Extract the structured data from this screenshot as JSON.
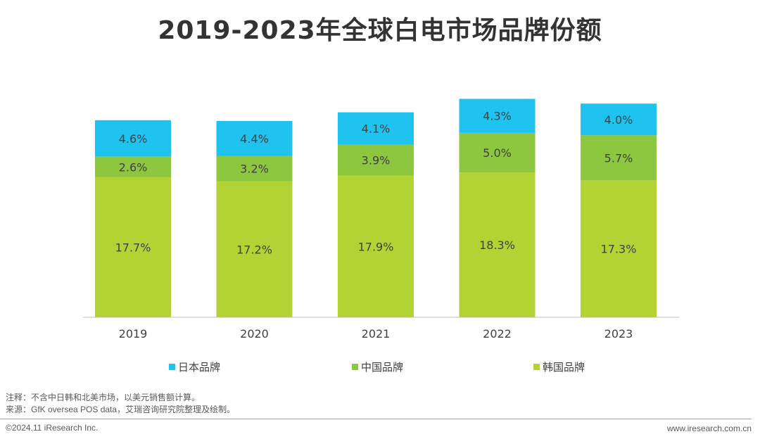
{
  "chart_data": {
    "type": "bar",
    "stacked": true,
    "title": "2019-2023年全球白电市场品牌份额",
    "xlabel": "",
    "ylabel": "",
    "categories": [
      "2019",
      "2020",
      "2021",
      "2022",
      "2023"
    ],
    "series": [
      {
        "name": "韩国品牌",
        "color": "#b3d234",
        "values": [
          17.7,
          17.2,
          17.9,
          18.3,
          17.3
        ],
        "labels": [
          "17.7%",
          "17.2%",
          "17.9%",
          "18.3%",
          "17.3%"
        ]
      },
      {
        "name": "中国品牌",
        "color": "#8dc63f",
        "values": [
          2.6,
          3.2,
          3.9,
          5.0,
          5.7
        ],
        "labels": [
          "2.6%",
          "3.2%",
          "3.9%",
          "5.0%",
          "5.7%"
        ]
      },
      {
        "name": "日本品牌",
        "color": "#1fc3ef",
        "values": [
          4.6,
          4.4,
          4.1,
          4.3,
          4.0
        ],
        "labels": [
          "4.6%",
          "4.4%",
          "4.1%",
          "4.3%",
          "4.0%"
        ]
      }
    ],
    "legend": [
      "日本品牌",
      "中国品牌",
      "韩国品牌"
    ],
    "legend_position": "bottom",
    "grid": false,
    "ylim": [
      0,
      28
    ]
  },
  "notes": {
    "note": "注释：不含中日韩和北美市场，以美元销售额计算。",
    "source": "来源：GfK oversea POS data，艾瑞咨询研究院整理及绘制。"
  },
  "footer": {
    "copyright": "©2024.11 iResearch Inc.",
    "website": "www.iresearch.com.cn"
  }
}
